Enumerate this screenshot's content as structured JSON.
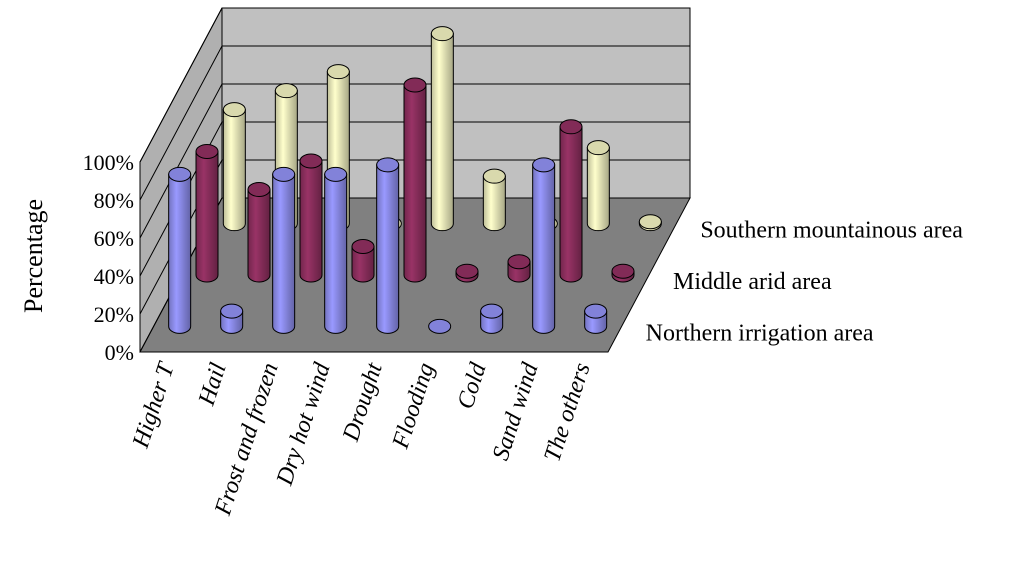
{
  "chart_data": {
    "type": "bar",
    "variant": "3d-cylinder",
    "title": "",
    "ylabel": "Percentage",
    "ylim": [
      0,
      100
    ],
    "yticks": [
      "0%",
      "20%",
      "40%",
      "60%",
      "80%",
      "100%"
    ],
    "grid": true,
    "categories": [
      "Higher T",
      "Hail",
      "Frost and frozen",
      "Dry hot wind",
      "Drought",
      "Flooding",
      "Cold",
      "Sand wind",
      "The others"
    ],
    "series": [
      {
        "name": "Northern irrigation area",
        "color": "#9999ff",
        "values": [
          80,
          8,
          80,
          80,
          85,
          0,
          8,
          85,
          8
        ]
      },
      {
        "name": "Middle arid area",
        "color": "#993366",
        "values": [
          65,
          45,
          60,
          15,
          100,
          2,
          7,
          78,
          2
        ]
      },
      {
        "name": "Southern mountainous area",
        "color": "#ffffcc",
        "values": [
          60,
          70,
          80,
          0,
          100,
          25,
          0,
          40,
          1
        ]
      }
    ]
  }
}
